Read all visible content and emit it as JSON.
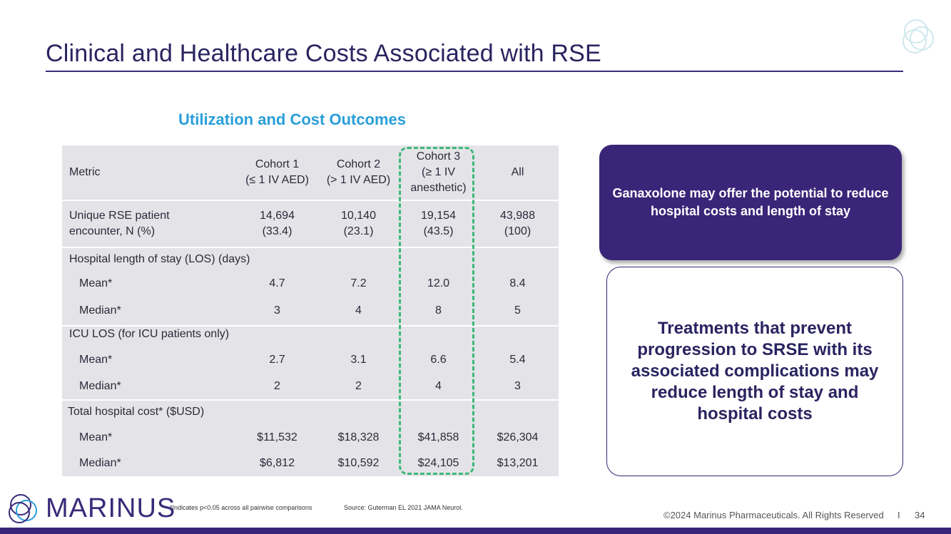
{
  "slide": {
    "title": "Clinical and Healthcare Costs Associated with RSE",
    "table_title": "Utilization and Cost Outcomes"
  },
  "table": {
    "headers": {
      "metric": "Metric",
      "c1": "Cohort 1\n(≤ 1 IV AED)",
      "c2": "Cohort 2\n(> 1 IV AED)",
      "c3": "Cohort 3\n(≥ 1 IV\nanesthetic)",
      "all": "All"
    },
    "unique": {
      "metric": "Unique RSE patient\nencounter, N (%)",
      "c1": "14,694\n(33.4)",
      "c2": "10,140\n(23.1)",
      "c3": "19,154\n(43.5)",
      "all": "43,988\n(100)"
    },
    "los_header": "Hospital length of stay (LOS) (days)",
    "los_mean": {
      "metric": "Mean*",
      "c1": "4.7",
      "c2": "7.2",
      "c3": "12.0",
      "all": "8.4"
    },
    "los_median": {
      "metric": "Median*",
      "c1": "3",
      "c2": "4",
      "c3": "8",
      "all": "5"
    },
    "icu_header": "ICU LOS (for ICU patients only)",
    "icu_mean": {
      "metric": "Mean*",
      "c1": "2.7",
      "c2": "3.1",
      "c3": "6.6",
      "all": "5.4"
    },
    "icu_median": {
      "metric": "Median*",
      "c1": "2",
      "c2": "2",
      "c3": "4",
      "all": "3"
    },
    "cost_header": "Total hospital cost* ($USD)",
    "cost_mean": {
      "metric": "Mean*",
      "c1": "$11,532",
      "c2": "$18,328",
      "c3": "$41,858",
      "all": "$26,304"
    },
    "cost_median": {
      "metric": "Median*",
      "c1": "$6,812",
      "c2": "$10,592",
      "c3": "$24,105",
      "all": "$13,201"
    }
  },
  "callouts": {
    "purple": "Ganaxolone may offer the potential to reduce hospital costs and length of stay",
    "outline": "Treatments that prevent progression to SRSE with its associated complications may reduce length of stay and hospital costs"
  },
  "footer": {
    "logo_text": "MARINUS",
    "footnote": "*Indicates p<0.05 across all pairwise comparisons",
    "source": "Source: Guterman EL 2021 JAMA Neurol.",
    "copyright": "©2024 Marinus Pharmaceuticals. All Rights Reserved",
    "separator": "I",
    "page": "34"
  },
  "colors": {
    "brand_purple": "#3a2578",
    "accent_blue": "#2a9fd9",
    "highlight_green": "#3cb878",
    "table_gray": "#e4e4e8"
  },
  "icons": {
    "corner": "marinus-rings-icon",
    "footer": "marinus-logo-icon"
  }
}
